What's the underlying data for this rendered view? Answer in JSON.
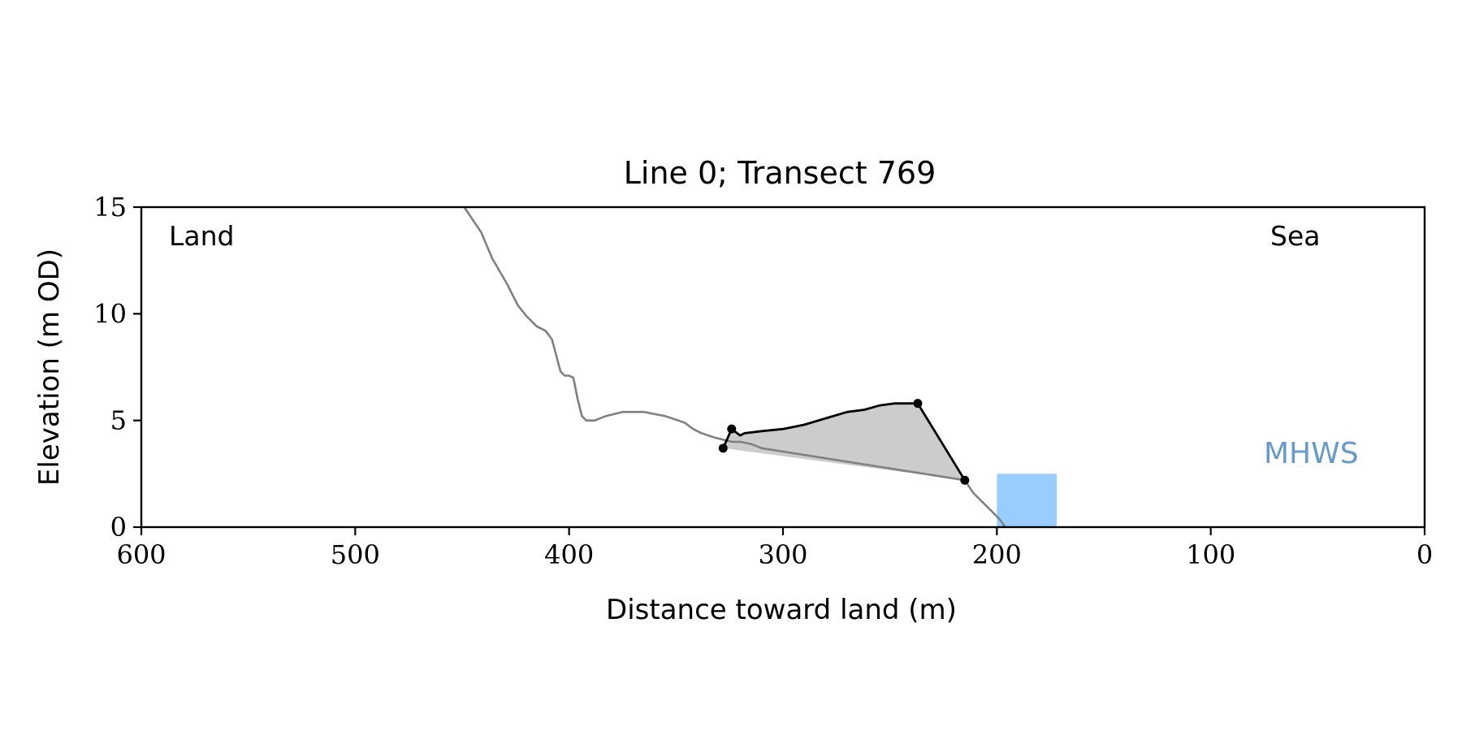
{
  "chart_data": {
    "type": "line",
    "title": "Line 0; Transect 769",
    "xlabel": "Distance toward land (m)",
    "ylabel": "Elevation (m OD)",
    "xlim": [
      600,
      0
    ],
    "ylim": [
      0,
      15
    ],
    "x_ticks": [
      600,
      500,
      400,
      300,
      200,
      100,
      0
    ],
    "y_ticks": [
      0,
      5,
      10,
      15
    ],
    "grid": false,
    "annotations": {
      "land": "Land",
      "sea": "Sea",
      "mhws": "MHWS"
    },
    "mhws_level": 2.5,
    "water_region": {
      "x_start": 200,
      "x_end": 172,
      "level": 2.5
    },
    "colors": {
      "profile": "#808080",
      "feature": "#000000",
      "feature_fill": "#cccccc",
      "water": "#99ccff",
      "mhws_text": "#6699cc"
    },
    "series": [
      {
        "role": "profile",
        "points": [
          [
            449,
            15.0
          ],
          [
            441,
            13.8
          ],
          [
            436,
            12.6
          ],
          [
            429,
            11.4
          ],
          [
            424,
            10.4
          ],
          [
            420,
            9.9
          ],
          [
            415,
            9.4
          ],
          [
            411,
            9.2
          ],
          [
            408,
            8.8
          ],
          [
            404,
            7.3
          ],
          [
            402,
            7.1
          ],
          [
            400,
            7.1
          ],
          [
            398,
            7.0
          ],
          [
            396,
            6.0
          ],
          [
            394,
            5.2
          ],
          [
            392,
            5.0
          ],
          [
            388,
            5.0
          ],
          [
            383,
            5.2
          ],
          [
            375,
            5.4
          ],
          [
            365,
            5.4
          ],
          [
            355,
            5.2
          ],
          [
            346,
            4.9
          ],
          [
            342,
            4.6
          ],
          [
            338,
            4.4
          ],
          [
            332,
            4.2
          ],
          [
            324,
            4.0
          ],
          [
            320,
            4.0
          ],
          [
            315,
            3.9
          ],
          [
            310,
            3.7
          ],
          [
            215,
            2.2
          ],
          [
            211,
            1.6
          ],
          [
            205,
            1.0
          ],
          [
            199,
            0.4
          ],
          [
            196,
            0.0
          ]
        ]
      },
      {
        "role": "feature",
        "points": [
          [
            328,
            3.7
          ],
          [
            324,
            4.6
          ],
          [
            320,
            4.3
          ],
          [
            318,
            4.4
          ],
          [
            310,
            4.5
          ],
          [
            300,
            4.6
          ],
          [
            290,
            4.8
          ],
          [
            280,
            5.1
          ],
          [
            270,
            5.4
          ],
          [
            262,
            5.5
          ],
          [
            255,
            5.7
          ],
          [
            248,
            5.8
          ],
          [
            240,
            5.8
          ],
          [
            237,
            5.8
          ],
          [
            215,
            2.2
          ]
        ],
        "markers": [
          [
            328,
            3.7
          ],
          [
            324,
            4.6
          ],
          [
            237,
            5.8
          ],
          [
            215,
            2.2
          ]
        ]
      }
    ]
  }
}
